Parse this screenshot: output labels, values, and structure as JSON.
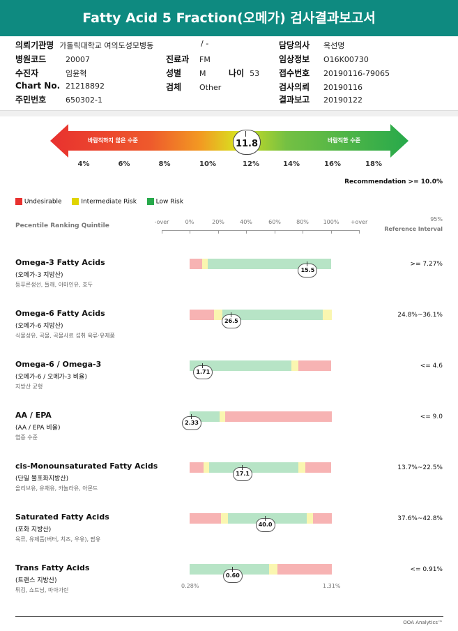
{
  "title": "Fatty Acid 5 Fraction(오메가) 검사결과보고서",
  "patient": {
    "institution_label": "의뢰기관명",
    "institution": "가톨릭대학교 여의도성모병동",
    "institution_extra": "/ -",
    "hospital_code_label": "병원코드",
    "hospital_code": "20007",
    "dept_label": "진료과",
    "dept": "FM",
    "recipient_label": "수진자",
    "recipient": "임윤혁",
    "sex_label": "성별",
    "sex": "M",
    "age_label": "나이",
    "age": "53",
    "chart_label": "Chart No.",
    "chart": "21218892",
    "specimen_label": "검체",
    "specimen": "Other",
    "id_label": "주민번호",
    "id": "650302-1",
    "doctor_label": "담당의사",
    "doctor": "옥선명",
    "clinical_label": "임상정보",
    "clinical": "O16K00730",
    "receipt_label": "접수번호",
    "receipt": "20190116-79065",
    "request_label": "검사의뢰",
    "request": "20190116",
    "report_label": "결과보고",
    "report": "20190122"
  },
  "gauge": {
    "left_label": "바람직하지 않은 수준",
    "right_label": "바람직한 수준",
    "value": "11.8",
    "ticks": [
      "4%",
      "6%",
      "8%",
      "10%",
      "12%",
      "14%",
      "16%",
      "18%"
    ]
  },
  "recommendation": "Recommendation  >= 10.0%",
  "legend": [
    {
      "label": "Undesirable",
      "color": "#e8312f"
    },
    {
      "label": "Intermediate Risk",
      "color": "#e0d400"
    },
    {
      "label": "Low Risk",
      "color": "#27a94b"
    }
  ],
  "scale_header": {
    "title": "Pecentile Ranking Quintile",
    "ticks": [
      "-over",
      "0%",
      "20%",
      "40%",
      "60%",
      "80%",
      "100%",
      "+over"
    ],
    "ref_line1": "95%",
    "ref_line2": "Reference Interval"
  },
  "colors": {
    "red": "#f7b3b3",
    "yellow": "#faf6b0",
    "green": "#b7e4c6"
  },
  "rows": [
    {
      "name": "Omega-3 Fatty Acids",
      "sub": "(오메가-3 지방산)",
      "desc": "등푸른생선, 들깨, 아마인유, 호두",
      "ref": ">= 7.27%",
      "value": "15.5",
      "position": 0.83,
      "segments": [
        [
          "red",
          0.09
        ],
        [
          "yellow",
          0.04
        ],
        [
          "green",
          0.87
        ]
      ]
    },
    {
      "name": "Omega-6 Fatty Acids",
      "sub": "(오메가-6 지방산)",
      "desc": "식물성유, 곡물, 곡물사료 섭취 육류·유제품",
      "ref": "24.8%~36.1%",
      "value": "26.5",
      "position": 0.29,
      "segments": [
        [
          "red",
          0.17
        ],
        [
          "yellow",
          0.06
        ],
        [
          "green",
          0.71
        ],
        [
          "yellow",
          0.06
        ]
      ]
    },
    {
      "name": "Omega-6 / Omega-3",
      "sub": "(오메가-6 / 오메가-3 비율)",
      "desc": "지방산 균형",
      "ref": "<= 4.6",
      "value": "1.71",
      "position": 0.09,
      "segments": [
        [
          "green",
          0.72
        ],
        [
          "yellow",
          0.05
        ],
        [
          "red",
          0.23
        ]
      ]
    },
    {
      "name": "AA / EPA",
      "sub": "(AA / EPA 비율)",
      "desc": "염증 수준",
      "ref": "<= 9.0",
      "value": "2.33",
      "position": 0.01,
      "segments": [
        [
          "green",
          0.21
        ],
        [
          "yellow",
          0.04
        ],
        [
          "red",
          0.75
        ]
      ]
    },
    {
      "name": "cis-Monounsaturated Fatty Acids",
      "sub": "(단일 불포화지방산)",
      "desc": "올리브유, 유채유, 카놀라유, 아몬드",
      "ref": "13.7%~22.5%",
      "value": "17.1",
      "position": 0.37,
      "segments": [
        [
          "red",
          0.1
        ],
        [
          "yellow",
          0.04
        ],
        [
          "green",
          0.63
        ],
        [
          "yellow",
          0.05
        ],
        [
          "red",
          0.18
        ]
      ]
    },
    {
      "name": "Saturated Fatty Acids",
      "sub": "(포화 지방산)",
      "desc": "육류, 유제품(버터, 치즈, 우유), 팜유",
      "ref": "37.6%~42.8%",
      "value": "40.0",
      "position": 0.53,
      "segments": [
        [
          "red",
          0.22
        ],
        [
          "yellow",
          0.05
        ],
        [
          "green",
          0.56
        ],
        [
          "yellow",
          0.04
        ],
        [
          "red",
          0.13
        ]
      ]
    },
    {
      "name": "Trans Fatty Acids",
      "sub": "(트랜스 지방산)",
      "desc": "튀김, 쇼트닝, 마아가린",
      "ref": "<= 0.91%",
      "value": "0.60",
      "position": 0.3,
      "segments": [
        [
          "green",
          0.56
        ],
        [
          "yellow",
          0.06
        ],
        [
          "red",
          0.38
        ]
      ],
      "min_label": "0.28%",
      "max_label": "1.31%"
    }
  ],
  "footer": "OOA Analytics™"
}
